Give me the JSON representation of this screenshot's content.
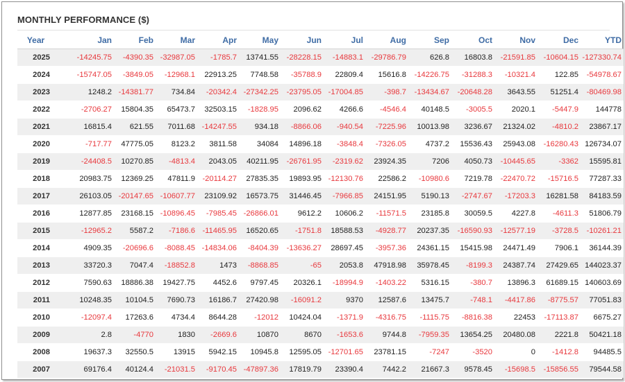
{
  "title": "MONTHLY PERFORMANCE ($)",
  "colors": {
    "negative": "#e8383d",
    "header": "#3f6ca5",
    "stripe": "#efefef"
  },
  "headers": [
    "Year",
    "Jan",
    "Feb",
    "Mar",
    "Apr",
    "May",
    "Jun",
    "Jul",
    "Aug",
    "Sep",
    "Oct",
    "Nov",
    "Dec",
    "YTD"
  ],
  "rows": [
    [
      "2025",
      "-14245.75",
      "-4390.35",
      "-32987.05",
      "-1785.7",
      "13741.55",
      "-28228.15",
      "-14883.1",
      "-29786.79",
      "626.8",
      "16803.8",
      "-21591.85",
      "-10604.15",
      "-127330.74"
    ],
    [
      "2024",
      "-15747.05",
      "-3849.05",
      "-12968.1",
      "22913.25",
      "7748.58",
      "-35788.9",
      "22809.4",
      "15616.8",
      "-14226.75",
      "-31288.3",
      "-10321.4",
      "122.85",
      "-54978.67"
    ],
    [
      "2023",
      "1248.2",
      "-14381.77",
      "734.84",
      "-20342.4",
      "-27342.25",
      "-23795.05",
      "-17004.85",
      "-398.7",
      "-13434.67",
      "-20648.28",
      "3643.55",
      "51251.4",
      "-80469.98"
    ],
    [
      "2022",
      "-2706.27",
      "15804.35",
      "65473.7",
      "32503.15",
      "-1828.95",
      "2096.62",
      "4266.6",
      "-4546.4",
      "40148.5",
      "-3005.5",
      "2020.1",
      "-5447.9",
      "144778"
    ],
    [
      "2021",
      "16815.4",
      "621.55",
      "7011.68",
      "-14247.55",
      "934.18",
      "-8866.06",
      "-940.54",
      "-7225.96",
      "10013.98",
      "3236.67",
      "21324.02",
      "-4810.2",
      "23867.17"
    ],
    [
      "2020",
      "-717.77",
      "47775.05",
      "8123.2",
      "3811.58",
      "34084",
      "14896.18",
      "-3848.4",
      "-7326.05",
      "4737.2",
      "15536.43",
      "25943.08",
      "-16280.43",
      "126734.07"
    ],
    [
      "2019",
      "-24408.5",
      "10270.85",
      "-4813.4",
      "2043.05",
      "40211.95",
      "-26761.95",
      "-2319.62",
      "23924.35",
      "7206",
      "4050.73",
      "-10445.65",
      "-3362",
      "15595.81"
    ],
    [
      "2018",
      "20983.75",
      "12369.25",
      "47811.9",
      "-20114.27",
      "27835.35",
      "19893.95",
      "-12130.76",
      "22586.2",
      "-10980.6",
      "7219.78",
      "-22470.72",
      "-15716.5",
      "77287.33"
    ],
    [
      "2017",
      "26103.05",
      "-20147.65",
      "-10607.77",
      "23109.92",
      "16573.75",
      "31446.45",
      "-7966.85",
      "24151.95",
      "5190.13",
      "-2747.67",
      "-17203.3",
      "16281.58",
      "84183.59"
    ],
    [
      "2016",
      "12877.85",
      "23168.15",
      "-10896.45",
      "-7985.45",
      "-26866.01",
      "9612.2",
      "10606.2",
      "-11571.5",
      "23185.8",
      "30059.5",
      "4227.8",
      "-4611.3",
      "51806.79"
    ],
    [
      "2015",
      "-12965.2",
      "5587.2",
      "-7186.6",
      "-11465.95",
      "16520.65",
      "-1751.8",
      "18588.53",
      "-4928.77",
      "20237.35",
      "-16590.93",
      "-12577.19",
      "-3728.5",
      "-10261.21"
    ],
    [
      "2014",
      "4909.35",
      "-20696.6",
      "-8088.45",
      "-14834.06",
      "-8404.39",
      "-13636.27",
      "28697.45",
      "-3957.36",
      "24361.15",
      "15415.98",
      "24471.49",
      "7906.1",
      "36144.39"
    ],
    [
      "2013",
      "33720.3",
      "7047.4",
      "-18852.8",
      "1473",
      "-8868.85",
      "-65",
      "2053.8",
      "47918.98",
      "35978.45",
      "-8199.3",
      "24387.74",
      "27429.65",
      "144023.37"
    ],
    [
      "2012",
      "7590.63",
      "18886.38",
      "19427.75",
      "4452.6",
      "9797.45",
      "20326.1",
      "-18994.9",
      "-1403.22",
      "5316.15",
      "-380.7",
      "13896.3",
      "61689.15",
      "140603.69"
    ],
    [
      "2011",
      "10248.35",
      "10104.5",
      "7690.73",
      "16186.7",
      "27420.98",
      "-16091.2",
      "9370",
      "12587.6",
      "13475.7",
      "-748.1",
      "-4417.86",
      "-8775.57",
      "77051.83"
    ],
    [
      "2010",
      "-12097.4",
      "17263.6",
      "4734.4",
      "8644.28",
      "-12012",
      "10424.04",
      "-1371.9",
      "-4316.75",
      "-1115.75",
      "-8816.38",
      "22453",
      "-17113.87",
      "6675.27"
    ],
    [
      "2009",
      "2.8",
      "-4770",
      "1830",
      "-2669.6",
      "10870",
      "8670",
      "-1653.6",
      "9744.8",
      "-7959.35",
      "13654.25",
      "20480.08",
      "2221.8",
      "50421.18"
    ],
    [
      "2008",
      "19637.3",
      "32550.5",
      "13915",
      "5942.15",
      "10945.8",
      "12595.05",
      "-12701.65",
      "23781.15",
      "-7247",
      "-3520",
      "0",
      "-1412.8",
      "94485.5"
    ],
    [
      "2007",
      "69176.4",
      "40124.4",
      "-21031.5",
      "-9170.45",
      "-47897.36",
      "17819.79",
      "23390.4",
      "7442.2",
      "21667.3",
      "9578.45",
      "-15698.5",
      "-15856.55",
      "79544.58"
    ]
  ]
}
